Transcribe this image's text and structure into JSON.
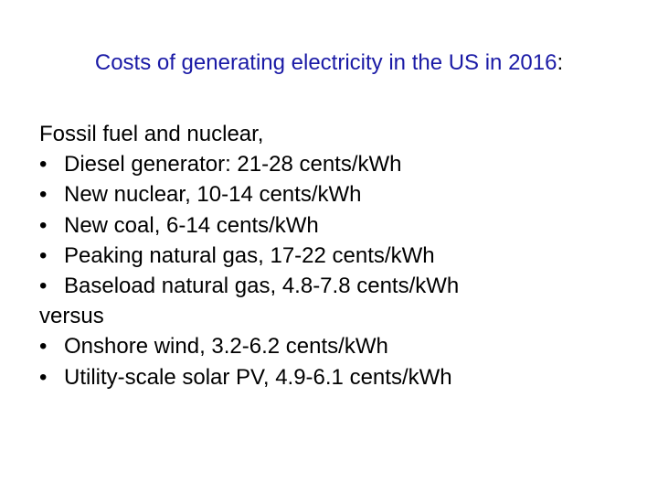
{
  "title": {
    "text": "Costs of generating electricity in the US in 2016",
    "colon": ":"
  },
  "body": {
    "intro": "Fossil fuel and nuclear,",
    "fossil_items": [
      "Diesel generator: 21-28 cents/kWh",
      "New nuclear, 10-14 cents/kWh",
      "New coal, 6-14 cents/kWh",
      "Peaking natural gas, 17-22 cents/kWh",
      "Baseload natural gas, 4.8-7.8 cents/kWh"
    ],
    "versus": "versus",
    "renewable_items": [
      "Onshore wind, 3.2-6.2 cents/kWh",
      "Utility-scale solar PV, 4.9-6.1 cents/kWh"
    ],
    "bullet_glyph": "•"
  },
  "colors": {
    "title": "#1a1aa6",
    "text": "#000000",
    "background": "#ffffff"
  }
}
